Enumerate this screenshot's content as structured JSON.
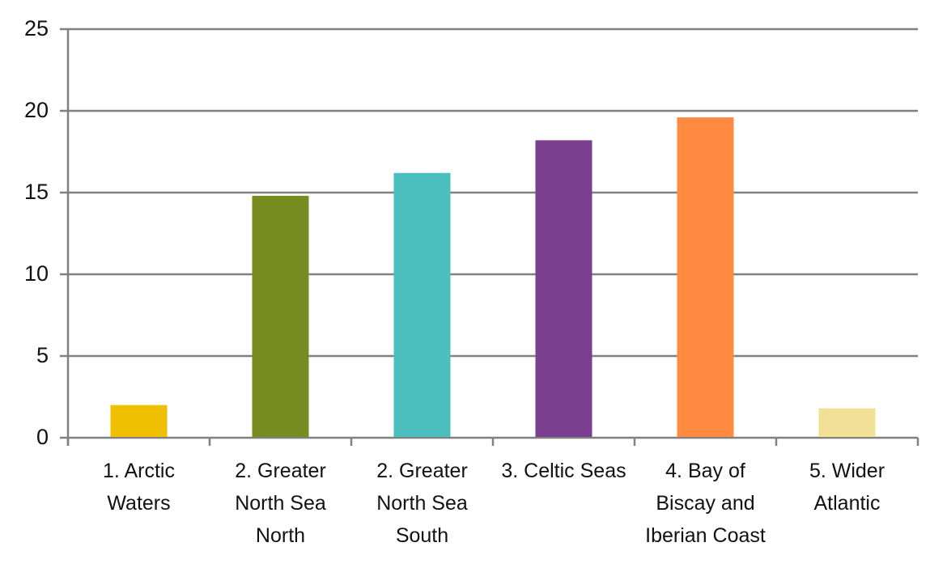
{
  "chart_data": {
    "type": "bar",
    "title": "",
    "xlabel": "",
    "ylabel": "",
    "ylim": [
      0,
      25
    ],
    "yticks": [
      0,
      5,
      10,
      15,
      20,
      25
    ],
    "grid": true,
    "legend": null,
    "categories": [
      "1. Arctic Waters",
      "2. Greater North Sea North",
      "2. Greater North Sea South",
      "3. Celtic Seas",
      "4. Bay of Biscay and Iberian Coast",
      "5. Wider Atlantic"
    ],
    "category_label_lines": [
      "1. Arctic\nWaters",
      "2. Greater\nNorth Sea\nNorth",
      "2. Greater\nNorth Sea\nSouth",
      "3. Celtic Seas",
      "4. Bay of\nBiscay and\nIberian Coast",
      "5. Wider\nAtlantic"
    ],
    "values": [
      2.0,
      14.8,
      16.2,
      18.2,
      19.6,
      1.8
    ],
    "colors": [
      "#F0C000",
      "#768C21",
      "#4ABFBE",
      "#7A3F8E",
      "#FF8A40",
      "#F2E096"
    ]
  },
  "style": {
    "gridline_color": "#808080",
    "axis_color": "#808080"
  }
}
